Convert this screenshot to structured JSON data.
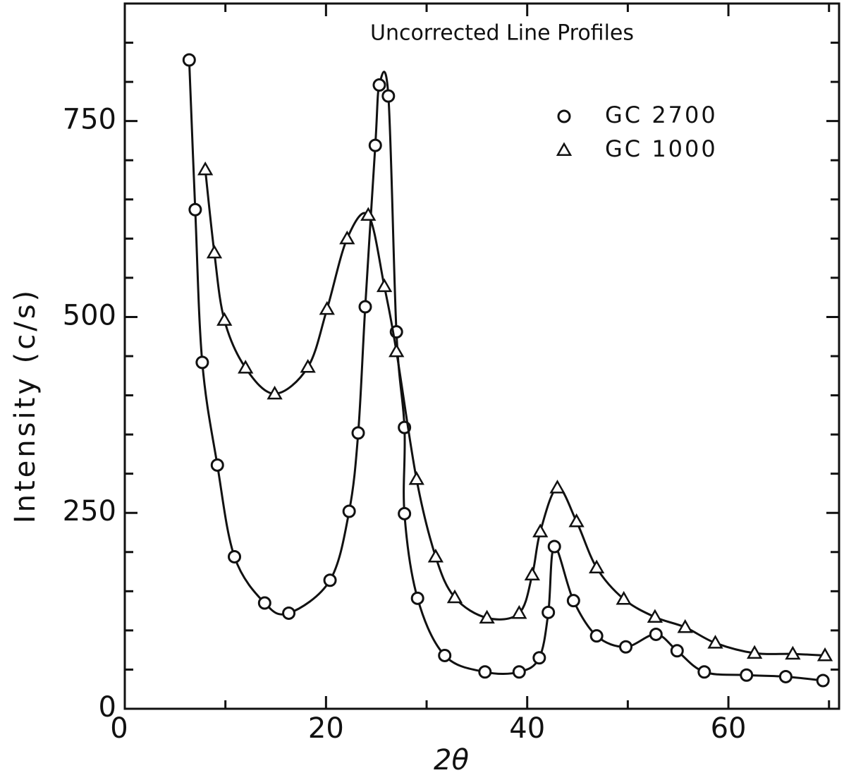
{
  "chart_data": {
    "type": "line",
    "title": "Uncorrected Line Profiles",
    "x_label": "2θ",
    "y_label": "Intensity (c/s)",
    "xlim": [
      0,
      71
    ],
    "ylim": [
      0,
      900
    ],
    "xticks": [
      0,
      20,
      40,
      60
    ],
    "yticks": [
      0,
      250,
      500,
      750
    ],
    "xminorticks": [
      10,
      30,
      50,
      70
    ],
    "yminorticks": [
      50,
      100,
      150,
      200,
      300,
      350,
      400,
      450,
      550,
      600,
      650,
      700,
      800,
      850
    ],
    "legend": "upper right",
    "series": [
      {
        "name": "GC 2700",
        "marker": "circle",
        "color": "#111111",
        "x": [
          6.4,
          7.0,
          7.7,
          9.2,
          10.9,
          13.9,
          16.3,
          20.4,
          22.3,
          23.2,
          23.9,
          24.9,
          25.3,
          26.2,
          27.0,
          27.8,
          27.8,
          29.1,
          31.8,
          35.8,
          39.2,
          41.2,
          42.1,
          42.7,
          44.6,
          46.9,
          49.8,
          52.8,
          54.9,
          57.6,
          61.8,
          65.7,
          69.4
        ],
        "values": [
          828,
          637,
          442,
          311,
          194,
          135,
          122,
          164,
          252,
          352,
          513,
          719,
          796,
          782,
          481,
          359,
          249,
          141,
          68,
          47,
          47,
          65,
          123,
          207,
          138,
          93,
          79,
          95,
          74,
          47,
          43,
          41,
          36
        ]
      },
      {
        "name": "GC 1000",
        "marker": "triangle",
        "color": "#111111",
        "x": [
          8.0,
          8.9,
          9.9,
          12.0,
          14.9,
          18.2,
          20.1,
          22.1,
          24.2,
          25.8,
          27.0,
          29.0,
          30.9,
          32.8,
          36.0,
          39.2,
          40.5,
          41.3,
          43.0,
          44.9,
          46.9,
          49.6,
          52.7,
          55.7,
          58.7,
          62.6,
          66.4,
          69.6
        ],
        "values": [
          688,
          582,
          496,
          435,
          402,
          436,
          510,
          600,
          630,
          539,
          456,
          293,
          194,
          142,
          116,
          122,
          171,
          226,
          282,
          239,
          180,
          140,
          117,
          104,
          84,
          71,
          70,
          68
        ]
      }
    ]
  }
}
